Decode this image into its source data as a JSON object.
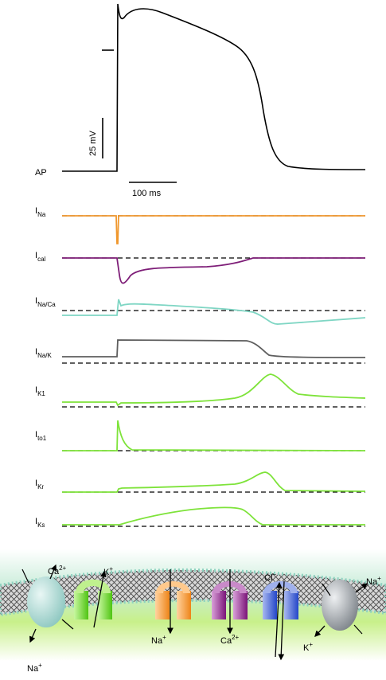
{
  "ap": {
    "label": "AP",
    "scale_voltage": "25 mV",
    "scale_time": "100 ms"
  },
  "currents": [
    {
      "main": "I",
      "sub": "Na",
      "color": "#f0982e"
    },
    {
      "main": "I",
      "sub": "cal",
      "color": "#7e1e78"
    },
    {
      "main": "I",
      "sub": "Na/Ca",
      "color": "#7fd6c4"
    },
    {
      "main": "I",
      "sub": "Na/K",
      "color": "#5e5e5e"
    },
    {
      "main": "I",
      "sub": "K1",
      "color": "#7ee33a"
    },
    {
      "main": "I",
      "sub": "to1",
      "color": "#7ee33a"
    },
    {
      "main": "I",
      "sub": "Kr",
      "color": "#7ee33a"
    },
    {
      "main": "I",
      "sub": "Ks",
      "color": "#7ee33a"
    }
  ],
  "membrane": {
    "ion_labels": {
      "ca_in": {
        "base": "Ca",
        "sup": "2+"
      },
      "k_out": {
        "base": "K",
        "sup": "+"
      },
      "na_exchanger": {
        "base": "Na",
        "sup": "+"
      },
      "na_channel": {
        "base": "Na",
        "sup": "+"
      },
      "ca_channel": {
        "base": "Ca",
        "sup": "2+"
      },
      "cl": {
        "base": "Cl",
        "sup": "−"
      },
      "na_pump": {
        "base": "Na",
        "sup": "+"
      },
      "k_pump": {
        "base": "K",
        "sup": "+"
      }
    },
    "colors": {
      "green_channel": "#5fd81c",
      "orange_channel": "#f7932b",
      "purple_channel": "#8a1f8a",
      "blue_channel": "#2f57d4",
      "exchanger": "#a7d9d3",
      "pump": "#9aa0a6",
      "bath": "#c8f08a"
    }
  }
}
